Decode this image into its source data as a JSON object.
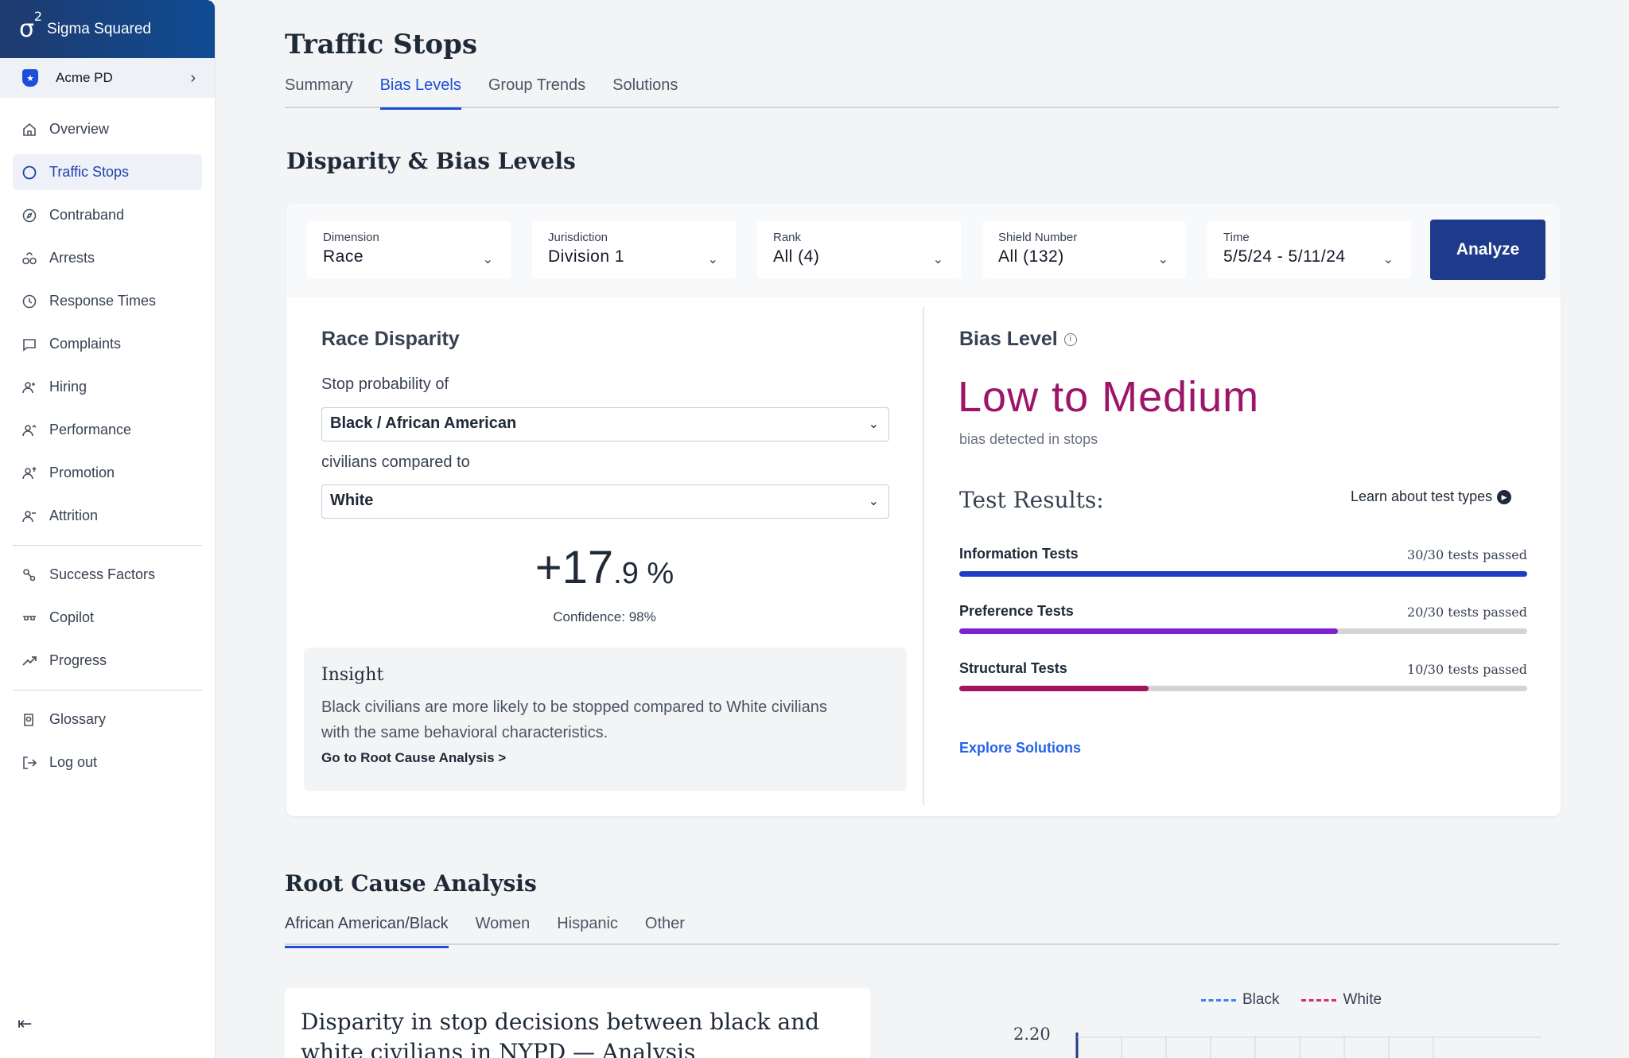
{
  "brand": {
    "logo": "σ",
    "logo_sup": "2",
    "name": "Sigma Squared"
  },
  "org": {
    "name": "Acme PD"
  },
  "sidebar": {
    "items": [
      {
        "label": "Overview",
        "icon": "home-icon"
      },
      {
        "label": "Traffic Stops",
        "icon": "circle-icon",
        "active": true
      },
      {
        "label": "Contraband",
        "icon": "compass-icon"
      },
      {
        "label": "Arrests",
        "icon": "handcuffs-icon"
      },
      {
        "label": "Response Times",
        "icon": "clock-icon"
      },
      {
        "label": "Complaints",
        "icon": "chat-icon"
      },
      {
        "label": "Hiring",
        "icon": "user-plus-icon"
      },
      {
        "label": "Performance",
        "icon": "user-chart-icon"
      },
      {
        "label": "Promotion",
        "icon": "user-up-icon"
      },
      {
        "label": "Attrition",
        "icon": "user-minus-icon"
      }
    ],
    "items2": [
      {
        "label": "Success Factors",
        "icon": "factors-icon"
      },
      {
        "label": "Copilot",
        "icon": "copilot-icon"
      },
      {
        "label": "Progress",
        "icon": "trend-up-icon"
      }
    ],
    "items3": [
      {
        "label": "Glossary",
        "icon": "book-icon"
      },
      {
        "label": "Log out",
        "icon": "logout-icon"
      }
    ]
  },
  "page": {
    "title": "Traffic Stops"
  },
  "tabs": [
    "Summary",
    "Bias Levels",
    "Group Trends",
    "Solutions"
  ],
  "section": {
    "title": "Disparity & Bias Levels"
  },
  "filters": [
    {
      "label": "Dimension",
      "value": "Race"
    },
    {
      "label": "Jurisdiction",
      "value": "Division 1"
    },
    {
      "label": "Rank",
      "value": "All (4)"
    },
    {
      "label": "Shield Number",
      "value": "All (132)"
    },
    {
      "label": "Time",
      "value": "5/5/24 - 5/11/24"
    }
  ],
  "analyze_label": "Analyze",
  "disparity": {
    "title": "Race Disparity",
    "prompt1": "Stop probability of",
    "group1": "Black / African American",
    "prompt2": "civilians compared to",
    "group2": "White",
    "stat_int": "+17",
    "stat_dec": ".9 %",
    "confidence": "Confidence: 98%"
  },
  "insight": {
    "title": "Insight",
    "body": "Black civilians are more likely to be stopped compared to White civilians with the same behavioral characteristics.",
    "link": "Go to Root Cause Analysis >"
  },
  "bias": {
    "title": "Bias Level",
    "level": "Low to Medium",
    "sub": "bias detected in stops",
    "test_title": "Test Results:",
    "learn": "Learn about test types",
    "tests": [
      {
        "name": "Information Tests",
        "count": "30/30 tests passed",
        "passed": 30,
        "total": 30,
        "color": "#1d3fc4"
      },
      {
        "name": "Preference Tests",
        "count": "20/30 tests passed",
        "passed": 20,
        "total": 30,
        "color": "#7e22ce"
      },
      {
        "name": "Structural Tests",
        "count": "10/30 tests passed",
        "passed": 10,
        "total": 30,
        "color": "#a3135f"
      }
    ],
    "explore": "Explore Solutions"
  },
  "root_cause": {
    "title": "Root Cause Analysis",
    "tabs": [
      "African American/Black",
      "Women",
      "Hispanic",
      "Other"
    ],
    "card_title": "Disparity in stop decisions between black and white civilians in NYPD — Analysis",
    "legend": [
      {
        "name": "Black",
        "color": "#3b82f6"
      },
      {
        "name": "White",
        "color": "#db2777"
      }
    ],
    "y_tick": "2.20"
  }
}
